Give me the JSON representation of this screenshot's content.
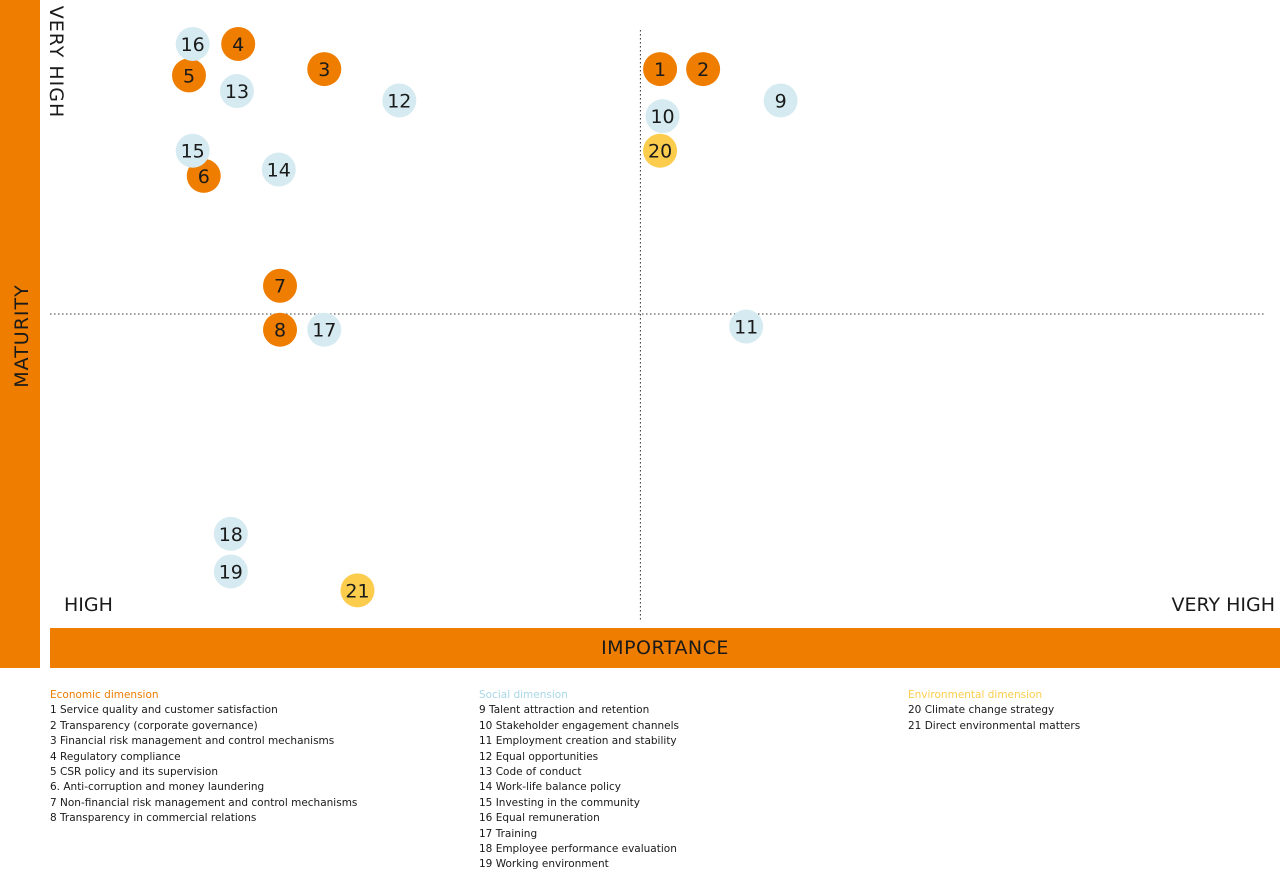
{
  "colors": {
    "economic": "#ee7d00",
    "social": "#d6ebf1",
    "environmental": "#fccd4d",
    "axis_band": "#ee7d00"
  },
  "chart_data": {
    "type": "scatter",
    "title": "",
    "xlabel": "IMPORTANCE",
    "ylabel": "MATURITY",
    "x_low_label": "HIGH",
    "x_high_label": "VERY HIGH",
    "y_high_label": "VERY HIGH",
    "xlim": [
      0,
      100
    ],
    "ylim": [
      0,
      100
    ],
    "dividers": {
      "x": 48,
      "y": 50
    },
    "grid": false,
    "points": [
      {
        "id": "1",
        "x": 49.6,
        "y": 89,
        "group": "economic"
      },
      {
        "id": "2",
        "x": 53.1,
        "y": 89,
        "group": "economic"
      },
      {
        "id": "3",
        "x": 22.3,
        "y": 89,
        "group": "economic"
      },
      {
        "id": "4",
        "x": 15.3,
        "y": 93,
        "group": "economic"
      },
      {
        "id": "5",
        "x": 11.3,
        "y": 88,
        "group": "economic"
      },
      {
        "id": "6",
        "x": 12.5,
        "y": 72,
        "group": "economic"
      },
      {
        "id": "7",
        "x": 18.7,
        "y": 54.5,
        "group": "economic"
      },
      {
        "id": "8",
        "x": 18.7,
        "y": 47.5,
        "group": "economic"
      },
      {
        "id": "9",
        "x": 59.4,
        "y": 84,
        "group": "social"
      },
      {
        "id": "10",
        "x": 49.8,
        "y": 81.5,
        "group": "social"
      },
      {
        "id": "11",
        "x": 56.6,
        "y": 48,
        "group": "social"
      },
      {
        "id": "12",
        "x": 28.4,
        "y": 84,
        "group": "social"
      },
      {
        "id": "13",
        "x": 15.2,
        "y": 85.5,
        "group": "social"
      },
      {
        "id": "14",
        "x": 18.6,
        "y": 73,
        "group": "social"
      },
      {
        "id": "15",
        "x": 11.6,
        "y": 76,
        "group": "social"
      },
      {
        "id": "16",
        "x": 11.6,
        "y": 93,
        "group": "social"
      },
      {
        "id": "17",
        "x": 22.3,
        "y": 47.5,
        "group": "social"
      },
      {
        "id": "18",
        "x": 14.7,
        "y": 15,
        "group": "social"
      },
      {
        "id": "19",
        "x": 14.7,
        "y": 9,
        "group": "social"
      },
      {
        "id": "20",
        "x": 49.6,
        "y": 76,
        "group": "environmental"
      },
      {
        "id": "21",
        "x": 25.0,
        "y": 6,
        "group": "environmental"
      }
    ]
  },
  "legend": {
    "economic": {
      "title": "Economic dimension",
      "items": [
        "1 Service quality and customer satisfaction",
        "2 Transparency (corporate governance)",
        "3 Financial risk management and control mechanisms",
        "4 Regulatory compliance",
        "5 CSR policy and its supervision",
        "6. Anti-corruption and money laundering",
        "7 Non-financial risk management and control mechanisms",
        "8 Transparency in commercial relations"
      ]
    },
    "social": {
      "title": "Social dimension",
      "items": [
        "9 Talent attraction and retention",
        "10 Stakeholder engagement channels",
        "11 Employment creation and stability",
        "12 Equal opportunities",
        "13 Code of conduct",
        "14 Work-life balance policy",
        "15 Investing in the community",
        "16 Equal remuneration",
        "17 Training",
        "18 Employee performance evaluation",
        "19 Working environment"
      ]
    },
    "environmental": {
      "title": "Environmental dimension",
      "items": [
        "20 Climate change strategy",
        "21 Direct environmental matters"
      ]
    }
  }
}
